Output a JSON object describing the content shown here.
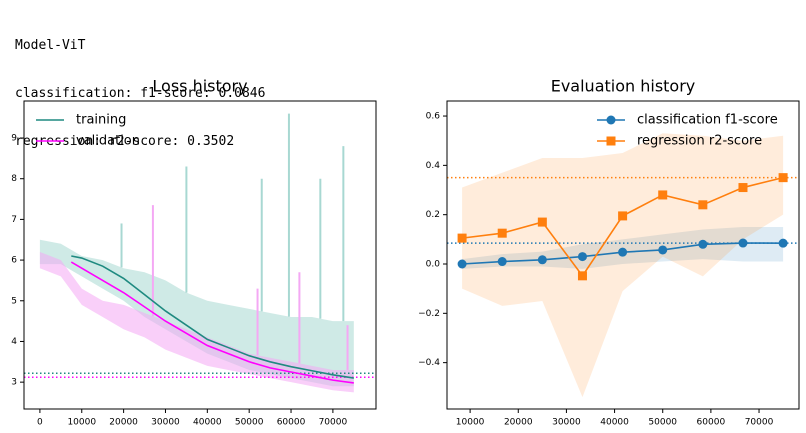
{
  "header": {
    "lines": [
      "Model-ViT",
      "classification: f1-score: 0.0846",
      "regression: r2-score: 0.3502"
    ]
  },
  "chart_data": [
    {
      "type": "line",
      "title": "Loss history",
      "legend": "upper left",
      "xlim": [
        -3800,
        80300
      ],
      "xticks": [
        0,
        10000,
        20000,
        30000,
        40000,
        50000,
        60000,
        70000
      ],
      "ylim": [
        2.34,
        9.91
      ],
      "yticks": [
        3,
        4,
        5,
        6,
        7,
        8,
        9
      ],
      "band_x": [
        0,
        5000,
        10000,
        15000,
        20000,
        25000,
        30000,
        35000,
        40000,
        45000,
        50000,
        55000,
        60000,
        65000,
        70000,
        75000
      ],
      "series": [
        {
          "name": "training",
          "color": "#1f8a80",
          "band_color": "#a8d8d2",
          "x": [
            7500,
            10000,
            15000,
            20000,
            25000,
            30000,
            35000,
            40000,
            45000,
            50000,
            55000,
            60000,
            65000,
            70000,
            75000
          ],
          "values": [
            6.1,
            6.05,
            5.85,
            5.55,
            5.15,
            4.75,
            4.4,
            4.05,
            3.85,
            3.65,
            3.5,
            3.38,
            3.28,
            3.18,
            3.1
          ],
          "band_upper": [
            6.5,
            6.4,
            6.1,
            6.0,
            5.8,
            5.7,
            5.5,
            5.2,
            5.0,
            4.9,
            4.8,
            4.7,
            4.6,
            4.6,
            4.5,
            4.5
          ],
          "band_lower": [
            5.9,
            5.9,
            5.6,
            5.3,
            5.0,
            4.6,
            4.3,
            4.0,
            3.7,
            3.5,
            3.3,
            3.2,
            3.1,
            3.0,
            2.9,
            2.9
          ],
          "spikes_x": [
            19500,
            35000,
            53000,
            59500,
            67000,
            72500
          ],
          "spikes": [
            6.9,
            8.3,
            8.0,
            9.6,
            8.0,
            8.8
          ],
          "reference": 3.22
        },
        {
          "name": "validation",
          "color": "#ff00ff",
          "band_color": "#f4a8f4",
          "x": [
            7500,
            10000,
            15000,
            20000,
            25000,
            30000,
            35000,
            40000,
            45000,
            50000,
            55000,
            60000,
            65000,
            70000,
            75000
          ],
          "values": [
            5.95,
            5.8,
            5.5,
            5.2,
            4.85,
            4.5,
            4.2,
            3.9,
            3.7,
            3.5,
            3.35,
            3.25,
            3.15,
            3.05,
            2.98
          ],
          "band_upper": [
            6.2,
            6.0,
            5.3,
            5.0,
            4.9,
            4.7,
            4.5,
            4.3,
            4.1,
            3.9,
            3.7,
            3.6,
            3.5,
            3.4,
            3.3,
            3.3
          ],
          "band_lower": [
            5.8,
            5.6,
            4.9,
            4.6,
            4.3,
            4.1,
            3.8,
            3.6,
            3.4,
            3.3,
            3.2,
            3.1,
            3.0,
            2.9,
            2.8,
            2.75
          ],
          "spikes_x": [
            27000,
            52000,
            62000,
            73500
          ],
          "spikes": [
            7.35,
            5.3,
            5.7,
            4.4
          ],
          "reference": 3.12
        }
      ]
    },
    {
      "type": "line",
      "title": "Evaluation history",
      "legend": "upper right",
      "xlim": [
        5200,
        78300
      ],
      "xticks": [
        10000,
        20000,
        30000,
        40000,
        50000,
        60000,
        70000
      ],
      "ylim": [
        -0.588,
        0.661
      ],
      "yticks": [
        {
          "value": -0.4,
          "label": "−0.4"
        },
        {
          "value": -0.2,
          "label": "−0.2"
        },
        {
          "value": 0,
          "label": "0.0"
        },
        0.2,
        0.4,
        0.6
      ],
      "series": [
        {
          "name": "classification f1-score",
          "color": "#1f77b4",
          "band_color": "#1f77b4",
          "marker": "circle",
          "x": [
            8333,
            16667,
            25000,
            33333,
            41667,
            50000,
            58333,
            66667,
            75000
          ],
          "values": [
            0.0,
            0.01,
            0.017,
            0.03,
            0.048,
            0.057,
            0.08,
            0.085,
            0.0846
          ],
          "band_upper": [
            0.02,
            0.04,
            0.05,
            0.08,
            0.1,
            0.12,
            0.14,
            0.15,
            0.15
          ],
          "band_lower": [
            -0.02,
            -0.01,
            -0.01,
            -0.02,
            0.0,
            0.01,
            0.02,
            0.01,
            0.01
          ],
          "reference": 0.0846
        },
        {
          "name": "regression r2-score",
          "color": "#ff7f0e",
          "band_color": "#ff7f0e",
          "marker": "square",
          "x": [
            8333,
            16667,
            25000,
            33333,
            41667,
            50000,
            58333,
            66667,
            75000
          ],
          "values": [
            0.105,
            0.125,
            0.17,
            -0.048,
            0.195,
            0.28,
            0.24,
            0.31,
            0.3502
          ],
          "band_upper": [
            0.31,
            0.37,
            0.43,
            0.43,
            0.45,
            0.53,
            0.52,
            0.5,
            0.52
          ],
          "band_lower": [
            -0.1,
            -0.17,
            -0.15,
            -0.54,
            -0.11,
            0.03,
            -0.05,
            0.1,
            0.2
          ],
          "reference": 0.3502
        }
      ]
    }
  ]
}
